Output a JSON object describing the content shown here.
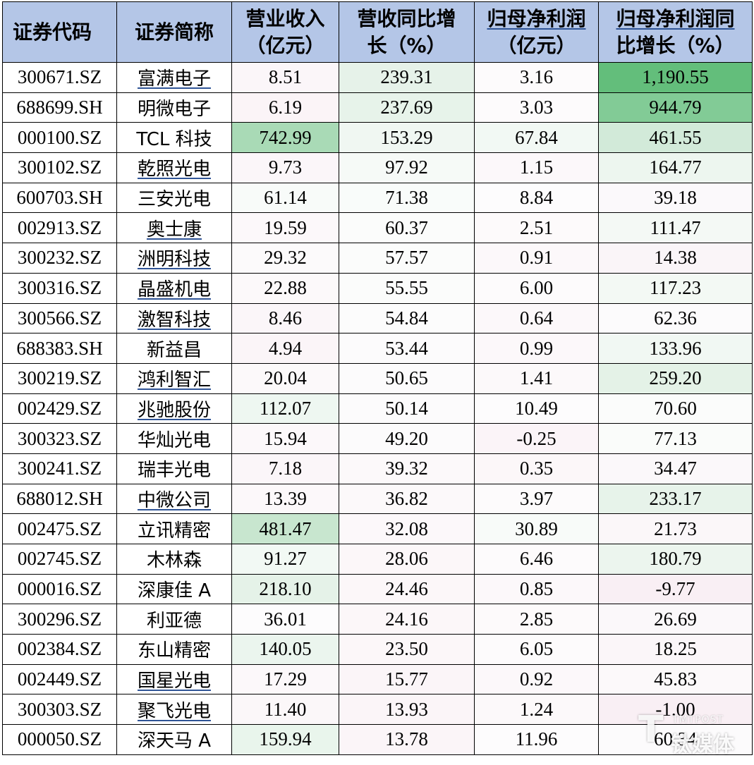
{
  "headers": [
    "证券代码",
    "证券简称",
    "营业收入（亿元）",
    "营收同比增长（%）",
    "归母净利润（亿元）",
    "归母净利润同比增长（%）"
  ],
  "header_lines": [
    [
      "证券代码"
    ],
    [
      "证券简称"
    ],
    [
      "营业收入",
      "（亿元）"
    ],
    [
      "营收同比增",
      "长（%）"
    ],
    [
      "归母净利润",
      "（亿元）"
    ],
    [
      "归母净利润同",
      "比增长（%）"
    ]
  ],
  "rows": [
    {
      "code": "300671.SZ",
      "name": "富满电子",
      "link": true,
      "rev": "8.51",
      "rev_growth": "239.31",
      "profit": "3.16",
      "profit_growth": "1,190.55",
      "bg": [
        "#fbf6f9",
        "#e6f2e9",
        "#fdfbfc",
        "#63be7b"
      ]
    },
    {
      "code": "688699.SH",
      "name": "明微电子",
      "link": false,
      "rev": "6.19",
      "rev_growth": "237.69",
      "profit": "3.03",
      "profit_growth": "944.79",
      "bg": [
        "#fbf4f7",
        "#e7f3ea",
        "#fdfbfc",
        "#82cb96"
      ]
    },
    {
      "code": "000100.SZ",
      "name": "TCL 科技",
      "link": false,
      "rev": "742.99",
      "rev_growth": "153.29",
      "profit": "67.84",
      "profit_growth": "461.55",
      "bg": [
        "#a9dab6",
        "#f0f7f2",
        "#f2f9f4",
        "#d2ead9"
      ]
    },
    {
      "code": "300102.SZ",
      "name": "乾照光电",
      "link": true,
      "rev": "9.73",
      "rev_growth": "97.92",
      "profit": "1.15",
      "profit_growth": "164.77",
      "bg": [
        "#fbf6f9",
        "#f6faf7",
        "#fcf8fa",
        "#edf6ef"
      ]
    },
    {
      "code": "600703.SH",
      "name": "三安光电",
      "link": false,
      "rev": "61.14",
      "rev_growth": "71.38",
      "profit": "8.84",
      "profit_growth": "39.18",
      "bg": [
        "#f8fbf9",
        "#f9fcfa",
        "#fdfcfd",
        "#fbf9fb"
      ]
    },
    {
      "code": "002913.SZ",
      "name": "奥士康",
      "link": true,
      "rev": "19.59",
      "rev_growth": "60.37",
      "profit": "2.51",
      "profit_growth": "111.47",
      "bg": [
        "#fcf8fa",
        "#fbfcfb",
        "#fdfafb",
        "#f4f9f5"
      ]
    },
    {
      "code": "300232.SZ",
      "name": "洲明科技",
      "link": true,
      "rev": "29.32",
      "rev_growth": "57.57",
      "profit": "0.91",
      "profit_growth": "14.38",
      "bg": [
        "#fcfafb",
        "#fbfcfb",
        "#fcf8fa",
        "#faf5f8"
      ]
    },
    {
      "code": "300316.SZ",
      "name": "晶盛机电",
      "link": true,
      "rev": "22.88",
      "rev_growth": "55.55",
      "profit": "6.00",
      "profit_growth": "117.23",
      "bg": [
        "#fcf9fa",
        "#fbfcfb",
        "#fdfbfc",
        "#f3f9f4"
      ]
    },
    {
      "code": "300566.SZ",
      "name": "激智科技",
      "link": true,
      "rev": "8.46",
      "rev_growth": "54.84",
      "profit": "0.64",
      "profit_growth": "62.36",
      "bg": [
        "#fbf6f9",
        "#fcfcfc",
        "#fcf8fa",
        "#fcfbfc"
      ]
    },
    {
      "code": "688383.SH",
      "name": "新益昌",
      "link": false,
      "rev": "4.94",
      "rev_growth": "53.44",
      "profit": "0.99",
      "profit_growth": "133.96",
      "bg": [
        "#fbf5f8",
        "#fcfbfc",
        "#fcf8fa",
        "#f1f8f3"
      ]
    },
    {
      "code": "300219.SZ",
      "name": "鸿利智汇",
      "link": true,
      "rev": "20.04",
      "rev_growth": "50.65",
      "profit": "1.41",
      "profit_growth": "259.20",
      "bg": [
        "#fcf9fa",
        "#fcfbfc",
        "#fcf9fa",
        "#e4f2e7"
      ]
    },
    {
      "code": "002429.SZ",
      "name": "兆驰股份",
      "link": true,
      "rev": "112.07",
      "rev_growth": "50.14",
      "profit": "10.49",
      "profit_growth": "70.60",
      "bg": [
        "#eef7f1",
        "#fcfbfc",
        "#fdfcfd",
        "#fbfcfb"
      ]
    },
    {
      "code": "300323.SZ",
      "name": "华灿光电",
      "link": false,
      "rev": "15.94",
      "rev_growth": "49.20",
      "profit": "-0.25",
      "profit_growth": "77.13",
      "bg": [
        "#fcf8fa",
        "#fcfbfc",
        "#fbf4f8",
        "#fafcfa"
      ]
    },
    {
      "code": "300241.SZ",
      "name": "瑞丰光电",
      "link": false,
      "rev": "7.18",
      "rev_growth": "39.32",
      "profit": "0.35",
      "profit_growth": "34.47",
      "bg": [
        "#fbf6f9",
        "#fcf9fa",
        "#fcf7f9",
        "#fbf8fa"
      ]
    },
    {
      "code": "688012.SH",
      "name": "中微公司",
      "link": true,
      "rev": "13.39",
      "rev_growth": "36.82",
      "profit": "3.97",
      "profit_growth": "233.17",
      "bg": [
        "#fcf8fa",
        "#fcf9fa",
        "#fdfbfc",
        "#e7f3ea"
      ]
    },
    {
      "code": "002475.SZ",
      "name": "立讯精密",
      "link": false,
      "rev": "481.47",
      "rev_growth": "32.08",
      "profit": "30.89",
      "profit_growth": "21.73",
      "bg": [
        "#c8e6cf",
        "#fcf8fa",
        "#f8fbf9",
        "#fbf7f9"
      ]
    },
    {
      "code": "002745.SZ",
      "name": "木林森",
      "link": false,
      "rev": "91.27",
      "rev_growth": "28.06",
      "profit": "6.46",
      "profit_growth": "180.79",
      "bg": [
        "#f2f9f4",
        "#fcf7f9",
        "#fdfbfc",
        "#ecf5ee"
      ]
    },
    {
      "code": "000016.SZ",
      "name": "深康佳 A",
      "link": false,
      "rev": "218.10",
      "rev_growth": "24.46",
      "profit": "0.85",
      "profit_growth": "-9.77",
      "bg": [
        "#e5f2e8",
        "#fcf7f9",
        "#fcf8fa",
        "#f9eff4"
      ]
    },
    {
      "code": "300296.SZ",
      "name": "利亚德",
      "link": false,
      "rev": "36.01",
      "rev_growth": "24.16",
      "profit": "2.85",
      "profit_growth": "26.69",
      "bg": [
        "#fdfcfd",
        "#fcf7f9",
        "#fdfafb",
        "#fbf8fa"
      ]
    },
    {
      "code": "002384.SZ",
      "name": "东山精密",
      "link": false,
      "rev": "140.05",
      "rev_growth": "23.50",
      "profit": "6.05",
      "profit_growth": "18.25",
      "bg": [
        "#ebf5ee",
        "#fcf7f9",
        "#fdfbfc",
        "#fbf6f9"
      ]
    },
    {
      "code": "002449.SZ",
      "name": "国星光电",
      "link": true,
      "rev": "17.29",
      "rev_growth": "15.77",
      "profit": "0.92",
      "profit_growth": "45.83",
      "bg": [
        "#fcf8fa",
        "#fbf5f8",
        "#fcf8fa",
        "#fcf9fa"
      ]
    },
    {
      "code": "300303.SZ",
      "name": "聚飞光电",
      "link": true,
      "rev": "11.40",
      "rev_growth": "13.93",
      "profit": "1.24",
      "profit_growth": "-1.00",
      "bg": [
        "#fbf7f9",
        "#fbf5f8",
        "#fcf9fa",
        "#f9eff4"
      ]
    },
    {
      "code": "000050.SZ",
      "name": "深天马 A",
      "link": false,
      "rev": "159.94",
      "rev_growth": "13.78",
      "profit": "11.96",
      "profit_growth": "60.34",
      "bg": [
        "#e9f5ec",
        "#fbf5f8",
        "#fdfcfd",
        "#fcfbfc"
      ]
    }
  ],
  "watermark": {
    "mark": "T",
    "small": "TMTPOST",
    "brand": "钛媒体"
  }
}
